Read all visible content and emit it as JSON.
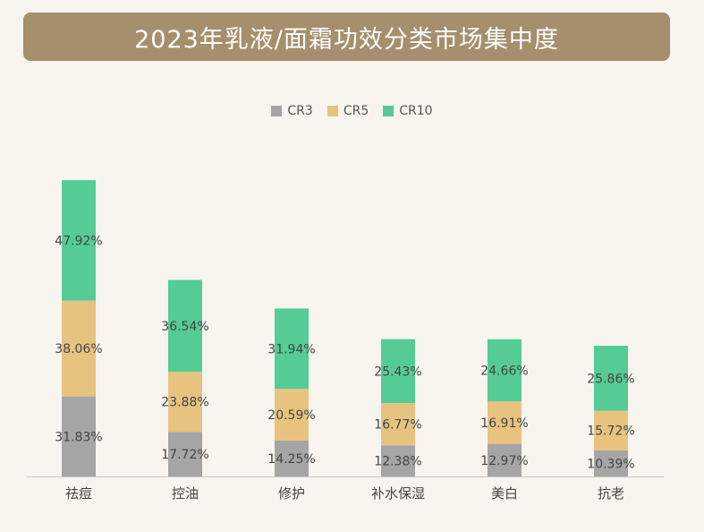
{
  "title": "2023年乳液/面霜功效分类市场集中度",
  "colors": {
    "title_bg": "#a68f6d",
    "CR3": "#a5a5a5",
    "CR5": "#e7c37f",
    "CR10": "#55cc96",
    "axis": "#c8c8c8",
    "label_text": "#444444"
  },
  "legend": [
    {
      "name": "CR3",
      "color_key": "CR3"
    },
    {
      "name": "CR5",
      "color_key": "CR5"
    },
    {
      "name": "CR10",
      "color_key": "CR10"
    }
  ],
  "chart_data": {
    "type": "bar",
    "stacked": true,
    "categories": [
      "祛痘",
      "控油",
      "修护",
      "补水保湿",
      "美白",
      "抗老"
    ],
    "series": [
      {
        "name": "CR3",
        "values": [
          31.83,
          17.72,
          14.25,
          12.38,
          12.97,
          10.39
        ],
        "labels": [
          "31.83%",
          "17.72%",
          "14.25%",
          "12.38%",
          "12.97%",
          "10.39%"
        ]
      },
      {
        "name": "CR5",
        "values": [
          38.06,
          23.88,
          20.59,
          16.77,
          16.91,
          15.72
        ],
        "labels": [
          "38.06%",
          "23.88%",
          "20.59%",
          "16.77%",
          "16.91%",
          "15.72%"
        ]
      },
      {
        "name": "CR10",
        "values": [
          47.92,
          36.54,
          31.94,
          25.43,
          24.66,
          25.86
        ],
        "labels": [
          "47.92%",
          "36.54%",
          "31.94%",
          "25.43%",
          "24.66%",
          "25.86%"
        ]
      }
    ],
    "ylim": [
      0,
      118.2
    ],
    "grid": false,
    "legend_position": "top-center"
  }
}
